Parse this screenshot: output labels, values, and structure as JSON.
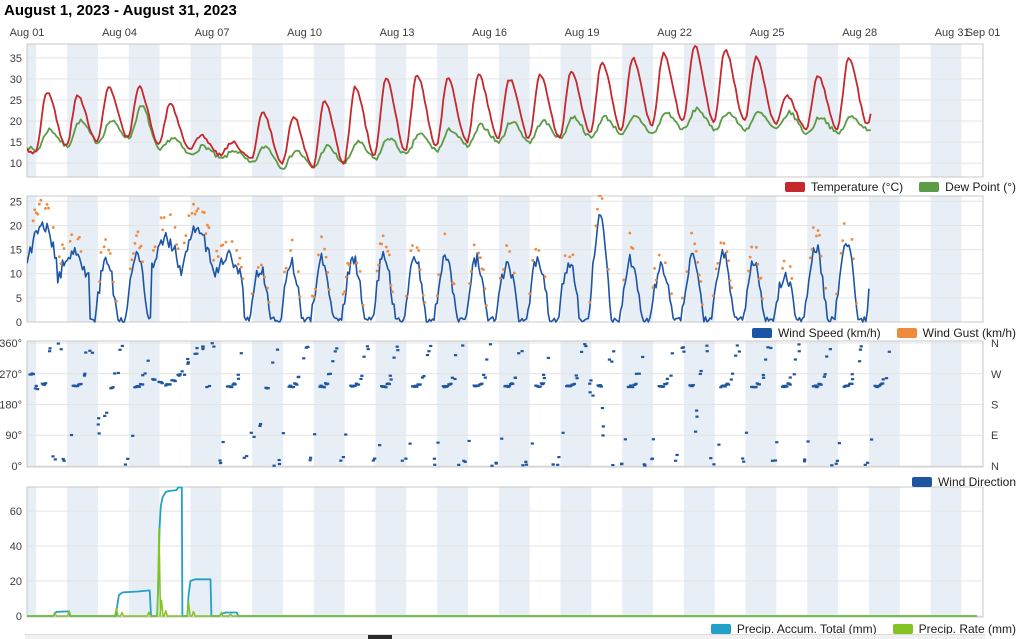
{
  "title": "August 1, 2023 - August 31, 2023",
  "x_axis": {
    "start_day": 1,
    "end_day": 32,
    "ticks": [
      {
        "label": "Aug 01",
        "day": 1
      },
      {
        "label": "Aug 04",
        "day": 4
      },
      {
        "label": "Aug 07",
        "day": 7
      },
      {
        "label": "Aug 10",
        "day": 10
      },
      {
        "label": "Aug 13",
        "day": 13
      },
      {
        "label": "Aug 16",
        "day": 16
      },
      {
        "label": "Aug 19",
        "day": 19
      },
      {
        "label": "Aug 22",
        "day": 22
      },
      {
        "label": "Aug 25",
        "day": 25
      },
      {
        "label": "Aug 28",
        "day": 28
      },
      {
        "label": "Aug 31",
        "day": 31
      },
      {
        "label": "Sep 01",
        "day": 32
      }
    ]
  },
  "style": {
    "band_color": "#e8eef5",
    "grid_color": "#e4e4e4",
    "border_color": "#c8c8c8",
    "axis_text_color": "#3d3d3d"
  },
  "chart_data": [
    {
      "id": "temperature",
      "type": "line",
      "yticks": [
        10,
        15,
        20,
        25,
        30,
        35
      ],
      "ylim": [
        6.7,
        38.3
      ],
      "days": 28,
      "series": [
        {
          "name": "Dew Point (°)",
          "color": "#5d9b47",
          "daily_low": [
            13,
            14,
            15,
            16,
            13,
            12,
            11,
            10,
            9,
            9,
            10,
            11,
            12,
            13,
            14,
            15,
            15,
            16,
            16,
            17,
            17,
            18,
            18,
            18,
            18,
            17,
            17,
            18
          ],
          "daily_high": [
            18,
            20,
            20,
            23.5,
            16,
            14,
            13,
            14,
            13,
            14,
            15,
            16,
            17,
            18,
            19,
            20,
            20,
            21,
            21,
            21,
            22,
            23,
            22,
            22,
            22,
            21,
            21,
            22
          ]
        },
        {
          "name": "Temperature (°C)",
          "color": "#c5282d",
          "daily_low": [
            12.5,
            14,
            15,
            16,
            14.5,
            13,
            12,
            11,
            10,
            9,
            10,
            12,
            13,
            14,
            15,
            16,
            16,
            16,
            17,
            18,
            19,
            20,
            20,
            20,
            19.5,
            18,
            18,
            19
          ],
          "daily_high": [
            27,
            26,
            28,
            28,
            24,
            16.5,
            15,
            22,
            21,
            25,
            28,
            30,
            31,
            30,
            31,
            30,
            31,
            32,
            34,
            35,
            36,
            38,
            37,
            35,
            26,
            31,
            35,
            36
          ]
        }
      ],
      "legend": [
        {
          "label": "Temperature (°C)",
          "color": "#c5282d"
        },
        {
          "label": "Dew Point (°)",
          "color": "#5d9b47"
        }
      ]
    },
    {
      "id": "wind",
      "type": "line+scatter",
      "yticks": [
        0,
        5,
        10,
        15,
        20,
        25
      ],
      "ylim": [
        0,
        26.1
      ],
      "days": 28,
      "series": [
        {
          "name": "Wind Speed (km/h)",
          "color": "#1d55a5",
          "daily_peak": [
            22,
            16,
            13,
            14,
            19,
            21,
            15,
            11,
            12,
            13,
            13,
            14,
            13,
            14,
            13,
            12,
            13,
            12,
            21,
            13,
            12,
            13,
            14,
            12,
            10,
            16,
            17,
            16
          ],
          "sustained_days": [
            1,
            2,
            5,
            6,
            7
          ]
        },
        {
          "name": "Wind Gust (km/h)",
          "color": "#f08b3e",
          "derived": "gust_dots_above_speed"
        }
      ],
      "legend": [
        {
          "label": "Wind Speed (km/h)",
          "color": "#1d55a5"
        },
        {
          "label": "Wind Gust (km/h)",
          "color": "#f08b3e"
        }
      ]
    },
    {
      "id": "wind_direction",
      "type": "scatter",
      "color": "#1e56a0",
      "yticks": [
        {
          "value": 0,
          "label": "0°",
          "right": "N"
        },
        {
          "value": 90,
          "label": "90°",
          "right": "E"
        },
        {
          "value": 180,
          "label": "180°",
          "right": "S"
        },
        {
          "value": 270,
          "label": "270°",
          "right": "W"
        },
        {
          "value": 360,
          "label": "360°",
          "right": "N"
        }
      ],
      "ylim": [
        0,
        360
      ],
      "days": 28,
      "base_pattern": [
        [
          0.06,
          350,
          2,
          30,
          "s"
        ],
        [
          0.22,
          15,
          2,
          25,
          "s"
        ],
        [
          0.38,
          80,
          1,
          40,
          "s"
        ],
        [
          0.5,
          233,
          5,
          6,
          "d"
        ],
        [
          0.68,
          240,
          3,
          5,
          "d"
        ],
        [
          0.82,
          262,
          2,
          18,
          "s"
        ],
        [
          0.93,
          320,
          1,
          30,
          "s"
        ]
      ],
      "overrides": {
        "1": [
          [
            0.1,
            270,
            4,
            6,
            "d"
          ],
          [
            0.3,
            230,
            3,
            10,
            "s"
          ],
          [
            0.5,
            240,
            4,
            5,
            "d"
          ],
          [
            0.7,
            345,
            2,
            20,
            "s"
          ],
          [
            0.85,
            25,
            2,
            20,
            "s"
          ]
        ],
        "3": [
          [
            0.08,
            340,
            2,
            25,
            "s"
          ],
          [
            0.3,
            120,
            3,
            50,
            "s"
          ],
          [
            0.55,
            160,
            2,
            30,
            "s"
          ],
          [
            0.72,
            230,
            3,
            8,
            "d"
          ],
          [
            0.9,
            270,
            2,
            12,
            "s"
          ]
        ],
        "5": [
          [
            0.08,
            252,
            3,
            10,
            "d"
          ],
          [
            0.28,
            244,
            4,
            6,
            "d"
          ],
          [
            0.5,
            238,
            5,
            5,
            "d"
          ],
          [
            0.7,
            250,
            4,
            8,
            "d"
          ],
          [
            0.9,
            266,
            3,
            10,
            "d"
          ]
        ],
        "6": [
          [
            0.08,
            272,
            2,
            12,
            "s"
          ],
          [
            0.28,
            305,
            3,
            25,
            "s"
          ],
          [
            0.5,
            335,
            3,
            25,
            "s"
          ],
          [
            0.7,
            350,
            3,
            18,
            "s"
          ],
          [
            0.9,
            235,
            2,
            10,
            "s"
          ]
        ],
        "8": [
          [
            0.1,
            20,
            2,
            18,
            "s"
          ],
          [
            0.32,
            90,
            2,
            25,
            "s"
          ],
          [
            0.55,
            115,
            2,
            20,
            "s"
          ],
          [
            0.75,
            230,
            3,
            8,
            "d"
          ],
          [
            0.92,
            300,
            1,
            15,
            "s"
          ]
        ],
        "19": [
          [
            0.12,
            350,
            2,
            20,
            "s"
          ],
          [
            0.3,
            180,
            4,
            150,
            "s"
          ],
          [
            0.52,
            235,
            4,
            8,
            "d"
          ],
          [
            0.72,
            120,
            3,
            130,
            "s"
          ],
          [
            0.9,
            310,
            2,
            40,
            "s"
          ]
        ],
        "22": [
          [
            0.1,
            30,
            2,
            30,
            "s"
          ],
          [
            0.3,
            340,
            3,
            40,
            "s"
          ],
          [
            0.5,
            236,
            4,
            7,
            "d"
          ],
          [
            0.7,
            150,
            3,
            120,
            "s"
          ],
          [
            0.9,
            272,
            2,
            16,
            "s"
          ]
        ]
      },
      "legend": [
        {
          "label": "Wind Direction",
          "color": "#1e56a0"
        }
      ]
    },
    {
      "id": "precip",
      "type": "line",
      "yticks": [
        0,
        20,
        40,
        60
      ],
      "ylim": [
        0,
        73.8
      ],
      "series": [
        {
          "name": "Precip. Accum. Total (mm)",
          "color": "#21a1c6",
          "points": [
            [
              1,
              0
            ],
            [
              1.85,
              0
            ],
            [
              1.95,
              2.3
            ],
            [
              2.35,
              2.6
            ],
            [
              2.4,
              0
            ],
            [
              3.88,
              0
            ],
            [
              3.92,
              5
            ],
            [
              3.98,
              12
            ],
            [
              4.1,
              13.5
            ],
            [
              4.6,
              14
            ],
            [
              4.98,
              14.6
            ],
            [
              5.02,
              0
            ],
            [
              5.22,
              0
            ],
            [
              5.26,
              20
            ],
            [
              5.3,
              51
            ],
            [
              5.34,
              63
            ],
            [
              5.4,
              68
            ],
            [
              5.5,
              71
            ],
            [
              5.6,
              71.5
            ],
            [
              5.85,
              72
            ],
            [
              5.9,
              73.5
            ],
            [
              6.02,
              73.5
            ],
            [
              6.04,
              0
            ],
            [
              6.2,
              0
            ],
            [
              6.24,
              12
            ],
            [
              6.3,
              20
            ],
            [
              6.45,
              21
            ],
            [
              6.95,
              21
            ],
            [
              6.98,
              0
            ],
            [
              7.25,
              0
            ],
            [
              7.3,
              1.2
            ],
            [
              7.45,
              2
            ],
            [
              7.8,
              2
            ],
            [
              7.85,
              0
            ],
            [
              31.8,
              0
            ]
          ]
        },
        {
          "name": "Precip. Rate (mm)",
          "color": "#84c322",
          "baseline": 0,
          "spikes": [
            [
              1.9,
              2
            ],
            [
              2.37,
              2.8
            ],
            [
              3.9,
              4.5
            ],
            [
              4.08,
              2
            ],
            [
              4.95,
              2.2
            ],
            [
              5.28,
              50
            ],
            [
              5.36,
              9
            ],
            [
              5.5,
              3
            ],
            [
              6.24,
              8
            ],
            [
              6.4,
              2.5
            ],
            [
              7.3,
              2
            ],
            [
              7.6,
              1.2
            ]
          ],
          "end_day": 31.8
        }
      ],
      "legend": [
        {
          "label": "Precip. Accum. Total (mm)",
          "color": "#21a1c6"
        },
        {
          "label": "Precip. Rate (mm)",
          "color": "#84c322"
        }
      ]
    }
  ]
}
